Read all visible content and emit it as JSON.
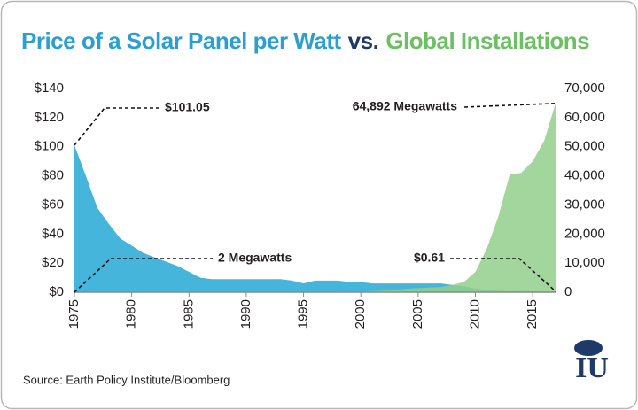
{
  "chart_data": {
    "type": "area",
    "title": "Price of a Solar Panel per Watt",
    "title_connector": "vs.",
    "title_right": "Global Installations",
    "source": "Source: Earth Policy Institute/Bloomberg",
    "logo": "IU",
    "x": [
      1975,
      1976,
      1977,
      1978,
      1979,
      1980,
      1981,
      1982,
      1983,
      1984,
      1985,
      1986,
      1987,
      1988,
      1989,
      1990,
      1991,
      1992,
      1993,
      1994,
      1995,
      1996,
      1997,
      1998,
      1999,
      2000,
      2001,
      2002,
      2003,
      2004,
      2005,
      2006,
      2007,
      2008,
      2009,
      2010,
      2011,
      2012,
      2013,
      2014,
      2015,
      2016,
      2017
    ],
    "xlim": [
      1975,
      2017
    ],
    "xticks": [
      1975,
      1980,
      1985,
      1990,
      1995,
      2000,
      2005,
      2010,
      2015
    ],
    "ylim": [
      0,
      140
    ],
    "yticks": [
      {
        "value": 0,
        "label": "$0"
      },
      {
        "value": 20,
        "label": "$20"
      },
      {
        "value": 40,
        "label": "$40"
      },
      {
        "value": 60,
        "label": "$60"
      },
      {
        "value": 80,
        "label": "$80"
      },
      {
        "value": 100,
        "label": "$100"
      },
      {
        "value": 120,
        "label": "$120"
      },
      {
        "value": 140,
        "label": "$140"
      }
    ],
    "y2lim": [
      0,
      70000
    ],
    "y2ticks": [
      0,
      {
        "value": 10000,
        "label": "10,000"
      },
      {
        "value": 20000,
        "label": "20,000"
      },
      {
        "value": 30000,
        "label": "30,000"
      },
      {
        "value": 40000,
        "label": "40,000"
      },
      {
        "value": 50000,
        "label": "50,000"
      },
      {
        "value": 60000,
        "label": "60,000"
      },
      {
        "value": 70000,
        "label": "70,000"
      }
    ],
    "series": [
      {
        "name": "Price of a Solar Panel per Watt",
        "color": "#45b5dc",
        "values": [
          101.05,
          80,
          58,
          47,
          37,
          32,
          27,
          24,
          21,
          18,
          14,
          10,
          9,
          9,
          9,
          9,
          9,
          9,
          9,
          8,
          6,
          8,
          8,
          8,
          7,
          7,
          6,
          6,
          6,
          6,
          6,
          6,
          6,
          5,
          4,
          2.5,
          1.5,
          1,
          0.8,
          0.75,
          0.65,
          0.62,
          0.61
        ],
        "annotations": [
          {
            "text": "$101.05"
          },
          {
            "text": "$0.61"
          }
        ]
      },
      {
        "name": "Global Installations",
        "color": "#93cf8c",
        "axis": "y2",
        "values": [
          2,
          3,
          4,
          5,
          6,
          7,
          10,
          15,
          20,
          25,
          25,
          30,
          35,
          40,
          45,
          45,
          55,
          60,
          60,
          70,
          80,
          90,
          125,
          150,
          200,
          280,
          390,
          530,
          750,
          1200,
          1400,
          1600,
          1800,
          2500,
          3500,
          7000,
          15000,
          26000,
          40500,
          41000,
          45000,
          52000,
          64892
        ],
        "annotations": [
          {
            "text": "2 Megawatts"
          },
          {
            "text": "64,892 Megawatts"
          }
        ]
      }
    ]
  }
}
